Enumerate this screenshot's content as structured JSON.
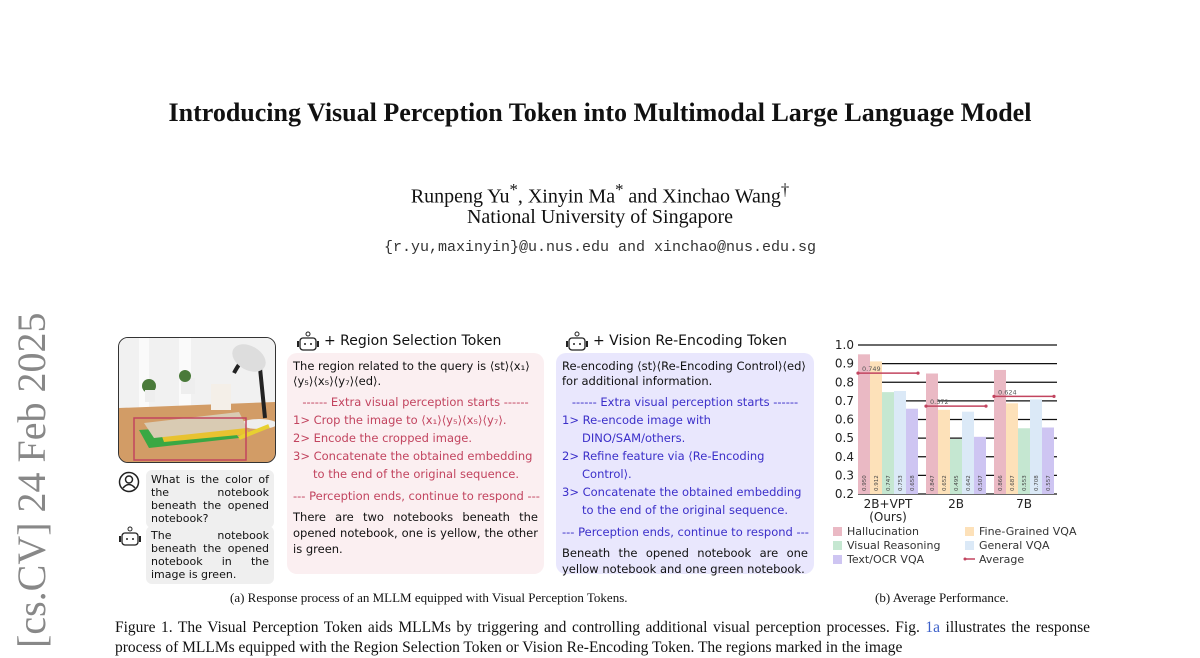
{
  "paper": {
    "title": "Introducing Visual Perception Token into Multimodal Large Language Model",
    "authors": [
      {
        "name": "Runpeng Yu",
        "mark": "*"
      },
      {
        "name": "Xinyin Ma",
        "mark": "*"
      },
      {
        "name": "Xinchao Wang",
        "mark": "†"
      }
    ],
    "author_sep1": ", ",
    "author_sep2": " and ",
    "affiliation": "National University of Singapore",
    "email": "{r.yu,maxinyin}@u.nus.edu and xinchao@nus.edu.sg",
    "arxiv_stamp": "[cs.CV]  24 Feb 2025"
  },
  "figure_a": {
    "user_question": "What is the color of the notebook beneath the opened notebook?",
    "bot_answer": "The notebook beneath the opened notebook in the image is green.",
    "panel_region": {
      "title": "+ Region Selection Token",
      "intro": "The region related to the query is ⟨st⟩⟨x₁⟩ ⟨y₅⟩⟨x₅⟩⟨y₇⟩⟨ed⟩.",
      "start_sep": "------ Extra visual perception starts ------",
      "steps": [
        "1> Crop the image to ⟨x₁⟩⟨y₅⟩⟨x₅⟩⟨y₇⟩.",
        "2> Encode the cropped image.",
        "3> Concatenate the obtained embedding to the end of the original sequence."
      ],
      "end_sep": "--- Perception ends, continue to respond ---",
      "response": "There are two notebooks beneath the opened notebook, one is yellow, the other is green."
    },
    "panel_reencode": {
      "title": "+ Vision Re-Encoding Token",
      "intro": "Re-encoding ⟨st⟩⟨Re-Encoding Control⟩⟨ed⟩ for additional information.",
      "start_sep": "------ Extra visual perception starts ------",
      "steps": [
        "1> Re-encode image with DINO/SAM/others.",
        "2> Refine feature via ⟨Re-Encoding Control⟩.",
        "3> Concatenate the obtained embedding to the end of the original sequence."
      ],
      "end_sep": "--- Perception ends, continue to respond ---",
      "response": "Beneath the opened notebook are one yellow notebook and one green notebook."
    },
    "caption": "(a) Response process of an MLLM equipped with Visual Perception Tokens.",
    "colors": {
      "region": "#c2445f",
      "reencode": "#3b2fc9"
    }
  },
  "chart_data": {
    "type": "bar",
    "categories": [
      "2B+VPT\n(Ours)",
      "2B",
      "7B"
    ],
    "category_labels": [
      "2B+VPT",
      "(Ours)",
      "2B",
      "7B"
    ],
    "series": [
      {
        "name": "Hallucination",
        "color": "#eab9c4",
        "values": [
          0.95,
          0.847,
          0.866
        ],
        "labels": [
          "0.950",
          "0.847",
          "0.866"
        ]
      },
      {
        "name": "Fine-Grained VQA",
        "color": "#fde1b9",
        "values": [
          0.912,
          0.652,
          0.687
        ],
        "labels": [
          "0.912",
          "0.652",
          "0.687"
        ]
      },
      {
        "name": "Visual Reasoning",
        "color": "#c5e7d1",
        "values": [
          0.747,
          0.495,
          0.553
        ],
        "labels": [
          "0.747",
          "0.495",
          "0.553"
        ]
      },
      {
        "name": "General VQA",
        "color": "#dbe9f7",
        "values": [
          0.753,
          0.642,
          0.708
        ],
        "labels": [
          "0.753",
          "0.642",
          "0.708"
        ]
      },
      {
        "name": "Text/OCR VQA",
        "color": "#cec5f2",
        "values": [
          0.658,
          0.507,
          0.557
        ],
        "labels": [
          "0.658",
          "0.507",
          "0.557"
        ]
      }
    ],
    "average": {
      "name": "Average",
      "color": "#c2445f",
      "labels": [
        "0.749",
        "0.572",
        "0.624"
      ]
    },
    "ylim": [
      0.2,
      1.0
    ],
    "yticks": [
      "0.2",
      "0.3",
      "0.4",
      "0.5",
      "0.6",
      "0.7",
      "0.8",
      "0.9",
      "1.0"
    ],
    "grid": true,
    "legend_placement": "bottom",
    "caption": "(b) Average Performance."
  },
  "figure_caption": {
    "lead": "Figure 1. The Visual Perception Token aids MLLMs by triggering and controlling additional visual perception processes. Fig. ",
    "ref": "1a",
    "rest": " illustrates the response process of MLLMs equipped with the Region Selection Token or Vision Re-Encoding Token. The regions marked in the image",
    "ref_color": "#3b5fc9"
  }
}
